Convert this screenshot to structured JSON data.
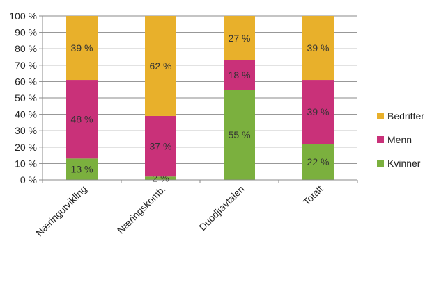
{
  "chart_data": {
    "type": "bar",
    "stacked": true,
    "title": "",
    "xlabel": "",
    "ylabel": "",
    "ylim": [
      0,
      100
    ],
    "yticks": [
      "0 %",
      "10 %",
      "20 %",
      "30 %",
      "40 %",
      "50 %",
      "60 %",
      "70 %",
      "80 %",
      "90 %",
      "100 %"
    ],
    "categories": [
      "Næringutvikling",
      "Næringskomb.",
      "Duodjiavtalen",
      "Totalt"
    ],
    "series": [
      {
        "name": "Kvinner",
        "color": "#7BB03E",
        "values": [
          13,
          2,
          55,
          22
        ]
      },
      {
        "name": "Menn",
        "color": "#C93179",
        "values": [
          48,
          37,
          18,
          39
        ]
      },
      {
        "name": "Bedrifter",
        "color": "#E8B02B",
        "values": [
          39,
          62,
          27,
          39
        ]
      }
    ],
    "value_suffix": " %",
    "grid": true,
    "legend": "right",
    "legend_order": [
      "Bedrifter",
      "Menn",
      "Kvinner"
    ]
  }
}
